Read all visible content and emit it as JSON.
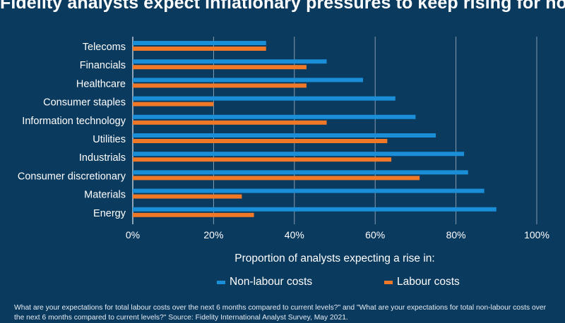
{
  "chart_data": {
    "type": "bar",
    "orientation": "horizontal",
    "title": "Fidelity analysts expect inflationary pressures to keep rising for now",
    "xlabel": "Proportion of analysts expecting a rise in:",
    "categories": [
      "Telecoms",
      "Financials",
      "Healthcare",
      "Consumer staples",
      "Information technology",
      "Utilities",
      "Industrials",
      "Consumer discretionary",
      "Materials",
      "Energy"
    ],
    "series": [
      {
        "name": "Non-labour costs",
        "color": "#1a8fd8",
        "values": [
          33,
          48,
          57,
          65,
          70,
          75,
          82,
          83,
          87,
          90
        ]
      },
      {
        "name": "Labour costs",
        "color": "#f07826",
        "values": [
          33,
          43,
          43,
          20,
          48,
          63,
          64,
          71,
          27,
          30
        ]
      }
    ],
    "xlim": [
      0,
      100
    ],
    "xticks": [
      0,
      20,
      40,
      60,
      80,
      100
    ],
    "xtick_labels": [
      "0%",
      "20%",
      "40%",
      "60%",
      "80%",
      "100%"
    ],
    "legend_position": "bottom",
    "grid": true
  },
  "footnote": "What are your expectations for total labour costs over the next 6 months compared to current levels?\" and \"What are your expectations for total non-labour costs over the next 6 months compared to current levels?\" Source: Fidelity International Analyst Survey, May 2021."
}
